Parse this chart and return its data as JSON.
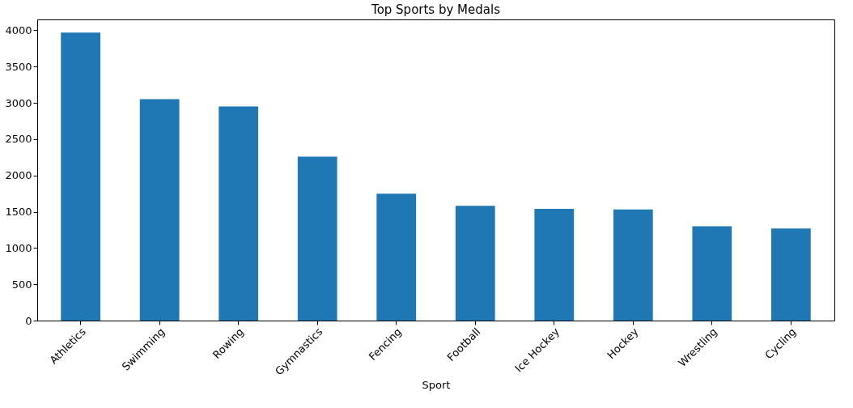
{
  "chart_data": {
    "type": "bar",
    "title": "Top Sports by Medals",
    "xlabel": "Sport",
    "categories": [
      "Athletics",
      "Swimming",
      "Rowing",
      "Gymnastics",
      "Fencing",
      "Football",
      "Ice Hockey",
      "Hockey",
      "Wrestling",
      "Cycling"
    ],
    "values": [
      3970,
      3050,
      2950,
      2260,
      1750,
      1580,
      1540,
      1530,
      1300,
      1270
    ],
    "color": "#1f77b4",
    "ylim": [
      0,
      4150
    ],
    "yticks": [
      0,
      500,
      1000,
      1500,
      2000,
      2500,
      3000,
      3500,
      4000
    ],
    "grid": false
  }
}
